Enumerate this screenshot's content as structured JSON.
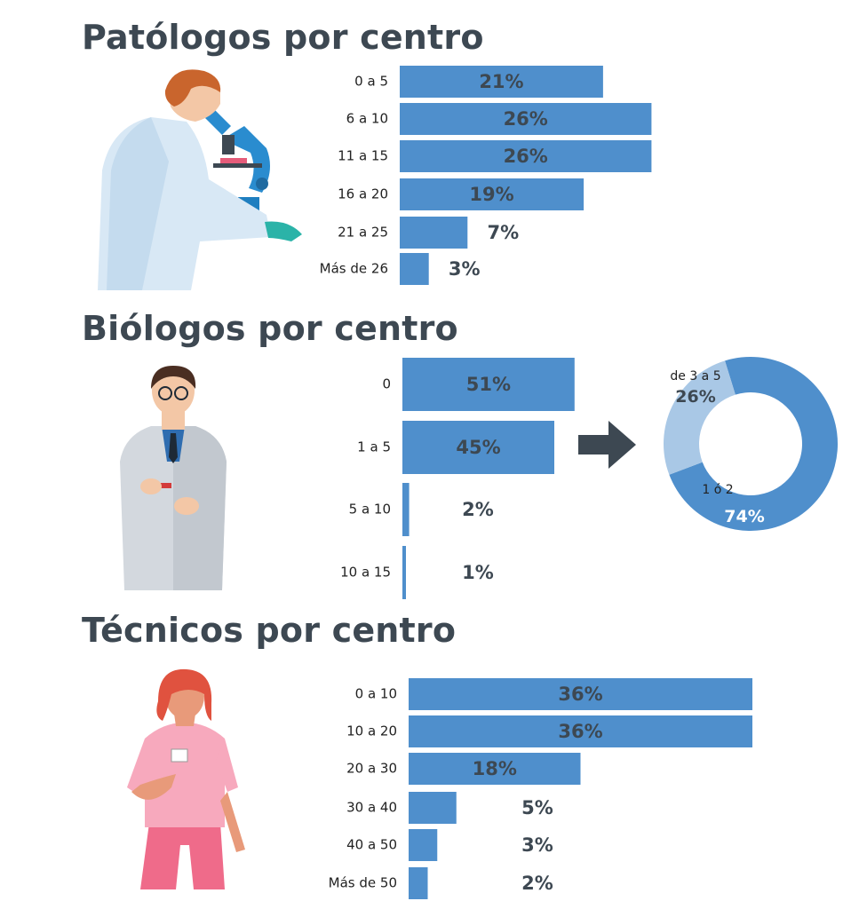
{
  "colors": {
    "bar": "#4f8fcc",
    "donut_main": "#4f8fcc",
    "donut_light": "#a9c8e6",
    "text_dark": "#3d4852",
    "arrow": "#3d4852"
  },
  "sections": {
    "patologos": {
      "title": "Patólogos por centro"
    },
    "biologos": {
      "title": "Biólogos por centro"
    },
    "tecnicos": {
      "title": "Técnicos por centro"
    }
  },
  "illustrations": [
    "pathologist-with-microscope-icon",
    "biologist-with-test-tube-icon",
    "technician-nurse-icon"
  ],
  "chart_data": [
    {
      "type": "bar",
      "orientation": "horizontal",
      "title": "Patólogos por centro",
      "categories": [
        "0 a 5",
        "6 a 10",
        "11 a 15",
        "16 a 20",
        "21 a 25",
        "Más de 26"
      ],
      "values": [
        21,
        26,
        26,
        19,
        7,
        3
      ],
      "labels": [
        "21%",
        "26%",
        "26%",
        "19%",
        "7%",
        "3%"
      ],
      "unit": "%"
    },
    {
      "type": "bar",
      "orientation": "horizontal",
      "title": "Biólogos por centro",
      "categories": [
        "0",
        "1 a 5",
        "5 a 10",
        "10 a 15"
      ],
      "values": [
        51,
        45,
        2,
        1
      ],
      "labels": [
        "51%",
        "45%",
        "2%",
        "1%"
      ],
      "unit": "%"
    },
    {
      "type": "pie",
      "variant": "donut",
      "slices": [
        {
          "name": "1 ó 2",
          "value": 74,
          "label": "74%"
        },
        {
          "name": "de 3 a 5",
          "value": 26,
          "label": "26%"
        }
      ]
    },
    {
      "type": "bar",
      "orientation": "horizontal",
      "title": "Técnicos por centro",
      "categories": [
        "0 a 10",
        "10 a 20",
        "20 a 30",
        "30 a 40",
        "40 a 50",
        "Más de 50"
      ],
      "values": [
        36,
        36,
        18,
        5,
        3,
        2
      ],
      "labels": [
        "36%",
        "36%",
        "18%",
        "5%",
        "3%",
        "2%"
      ],
      "unit": "%"
    }
  ]
}
